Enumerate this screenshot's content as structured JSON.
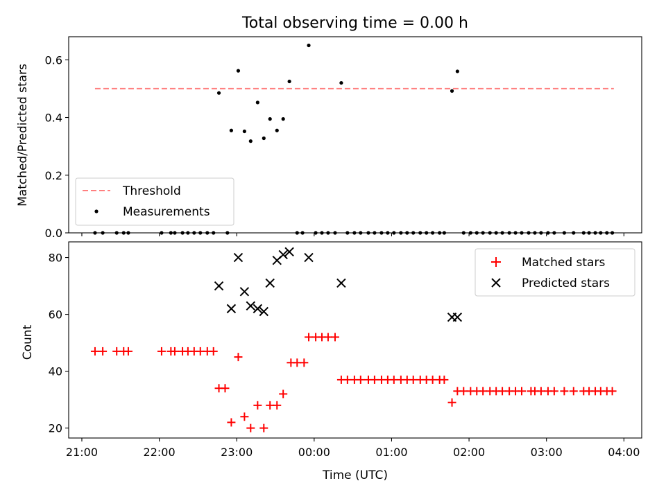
{
  "chart_data": [
    {
      "type": "scatter",
      "title": "Total observing time = 0.00 h",
      "xlabel": "",
      "ylabel": "Matched/Predicted stars",
      "ylim": [
        0,
        0.68
      ],
      "yticks": [
        "0.0",
        "0.2",
        "0.4",
        "0.6"
      ],
      "xlim_hours": [
        20.83,
        28.23
      ],
      "grid": false,
      "legend_placement": "lower-left",
      "threshold": {
        "name": "Threshold",
        "value": 0.5,
        "x_start_hours": 21.17,
        "x_end_hours": 27.87,
        "color": "#ff7f7f",
        "style": "dashed"
      },
      "series": [
        {
          "name": "Measurements",
          "color": "#000000",
          "marker": "dot",
          "points": [
            [
              21.17,
              0.0
            ],
            [
              21.27,
              0.0
            ],
            [
              21.45,
              0.0
            ],
            [
              21.54,
              0.0
            ],
            [
              21.6,
              0.0
            ],
            [
              22.03,
              0.0
            ],
            [
              22.15,
              0.0
            ],
            [
              22.2,
              0.0
            ],
            [
              22.3,
              0.0
            ],
            [
              22.37,
              0.0
            ],
            [
              22.45,
              0.0
            ],
            [
              22.53,
              0.0
            ],
            [
              22.62,
              0.0
            ],
            [
              22.7,
              0.0
            ],
            [
              22.88,
              0.0
            ],
            [
              22.77,
              0.485
            ],
            [
              22.93,
              0.355
            ],
            [
              23.02,
              0.562
            ],
            [
              23.1,
              0.352
            ],
            [
              23.18,
              0.318
            ],
            [
              23.27,
              0.452
            ],
            [
              23.35,
              0.328
            ],
            [
              23.43,
              0.395
            ],
            [
              23.52,
              0.355
            ],
            [
              23.6,
              0.395
            ],
            [
              23.68,
              0.525
            ],
            [
              23.78,
              0.0
            ],
            [
              23.85,
              0.0
            ],
            [
              23.93,
              0.65
            ],
            [
              24.02,
              0.0
            ],
            [
              24.1,
              0.0
            ],
            [
              24.18,
              0.0
            ],
            [
              24.27,
              0.0
            ],
            [
              24.35,
              0.52
            ],
            [
              24.43,
              0.0
            ],
            [
              24.52,
              0.0
            ],
            [
              24.6,
              0.0
            ],
            [
              24.7,
              0.0
            ],
            [
              24.78,
              0.0
            ],
            [
              24.87,
              0.0
            ],
            [
              24.95,
              0.0
            ],
            [
              25.03,
              0.0
            ],
            [
              25.12,
              0.0
            ],
            [
              25.2,
              0.0
            ],
            [
              25.28,
              0.0
            ],
            [
              25.37,
              0.0
            ],
            [
              25.45,
              0.0
            ],
            [
              25.53,
              0.0
            ],
            [
              25.62,
              0.0
            ],
            [
              25.68,
              0.0
            ],
            [
              25.78,
              0.492
            ],
            [
              25.85,
              0.56
            ],
            [
              25.93,
              0.0
            ],
            [
              26.02,
              0.0
            ],
            [
              26.1,
              0.0
            ],
            [
              26.18,
              0.0
            ],
            [
              26.27,
              0.0
            ],
            [
              26.35,
              0.0
            ],
            [
              26.43,
              0.0
            ],
            [
              26.52,
              0.0
            ],
            [
              26.6,
              0.0
            ],
            [
              26.68,
              0.0
            ],
            [
              26.77,
              0.0
            ],
            [
              26.85,
              0.0
            ],
            [
              26.93,
              0.0
            ],
            [
              27.02,
              0.0
            ],
            [
              27.1,
              0.0
            ],
            [
              27.23,
              0.0
            ],
            [
              27.35,
              0.0
            ],
            [
              27.48,
              0.0
            ],
            [
              27.55,
              0.0
            ],
            [
              27.63,
              0.0
            ],
            [
              27.7,
              0.0
            ],
            [
              27.78,
              0.0
            ],
            [
              27.85,
              0.0
            ]
          ]
        }
      ]
    },
    {
      "type": "scatter",
      "xlabel": "Time (UTC)",
      "ylabel": "Count",
      "ylim": [
        16.5,
        85.5
      ],
      "yticks": [
        "20",
        "40",
        "60",
        "80"
      ],
      "xlim_hours": [
        20.83,
        28.23
      ],
      "xticks": [
        "21:00",
        "22:00",
        "23:00",
        "00:00",
        "01:00",
        "02:00",
        "03:00",
        "04:00"
      ],
      "grid": false,
      "legend_placement": "upper-right",
      "series": [
        {
          "name": "Matched stars",
          "color": "#ff0000",
          "marker": "plus",
          "points": [
            [
              21.17,
              47
            ],
            [
              21.27,
              47
            ],
            [
              21.45,
              47
            ],
            [
              21.54,
              47
            ],
            [
              21.6,
              47
            ],
            [
              22.03,
              47
            ],
            [
              22.15,
              47
            ],
            [
              22.2,
              47
            ],
            [
              22.3,
              47
            ],
            [
              22.37,
              47
            ],
            [
              22.45,
              47
            ],
            [
              22.53,
              47
            ],
            [
              22.62,
              47
            ],
            [
              22.7,
              47
            ],
            [
              22.77,
              34
            ],
            [
              22.85,
              34
            ],
            [
              22.93,
              22
            ],
            [
              23.02,
              45
            ],
            [
              23.1,
              24
            ],
            [
              23.18,
              20
            ],
            [
              23.27,
              28
            ],
            [
              23.35,
              20
            ],
            [
              23.43,
              28
            ],
            [
              23.52,
              28
            ],
            [
              23.6,
              32
            ],
            [
              23.7,
              43
            ],
            [
              23.78,
              43
            ],
            [
              23.87,
              43
            ],
            [
              23.93,
              52
            ],
            [
              24.02,
              52
            ],
            [
              24.1,
              52
            ],
            [
              24.18,
              52
            ],
            [
              24.27,
              52
            ],
            [
              24.35,
              37
            ],
            [
              24.43,
              37
            ],
            [
              24.52,
              37
            ],
            [
              24.6,
              37
            ],
            [
              24.7,
              37
            ],
            [
              24.78,
              37
            ],
            [
              24.87,
              37
            ],
            [
              24.95,
              37
            ],
            [
              25.03,
              37
            ],
            [
              25.12,
              37
            ],
            [
              25.2,
              37
            ],
            [
              25.28,
              37
            ],
            [
              25.37,
              37
            ],
            [
              25.45,
              37
            ],
            [
              25.53,
              37
            ],
            [
              25.62,
              37
            ],
            [
              25.68,
              37
            ],
            [
              25.78,
              29
            ],
            [
              25.85,
              33
            ],
            [
              25.93,
              33
            ],
            [
              26.02,
              33
            ],
            [
              26.1,
              33
            ],
            [
              26.18,
              33
            ],
            [
              26.27,
              33
            ],
            [
              26.35,
              33
            ],
            [
              26.43,
              33
            ],
            [
              26.52,
              33
            ],
            [
              26.6,
              33
            ],
            [
              26.68,
              33
            ],
            [
              26.8,
              33
            ],
            [
              26.85,
              33
            ],
            [
              26.93,
              33
            ],
            [
              27.02,
              33
            ],
            [
              27.1,
              33
            ],
            [
              27.23,
              33
            ],
            [
              27.35,
              33
            ],
            [
              27.48,
              33
            ],
            [
              27.55,
              33
            ],
            [
              27.63,
              33
            ],
            [
              27.7,
              33
            ],
            [
              27.78,
              33
            ],
            [
              27.85,
              33
            ]
          ]
        },
        {
          "name": "Predicted stars",
          "color": "#000000",
          "marker": "x",
          "points": [
            [
              22.77,
              70
            ],
            [
              22.93,
              62
            ],
            [
              23.02,
              80
            ],
            [
              23.1,
              68
            ],
            [
              23.18,
              63
            ],
            [
              23.27,
              62
            ],
            [
              23.35,
              61
            ],
            [
              23.43,
              71
            ],
            [
              23.52,
              79
            ],
            [
              23.6,
              81
            ],
            [
              23.68,
              82
            ],
            [
              23.93,
              80
            ],
            [
              24.35,
              71
            ],
            [
              25.78,
              59
            ],
            [
              25.85,
              59
            ]
          ]
        }
      ]
    }
  ]
}
